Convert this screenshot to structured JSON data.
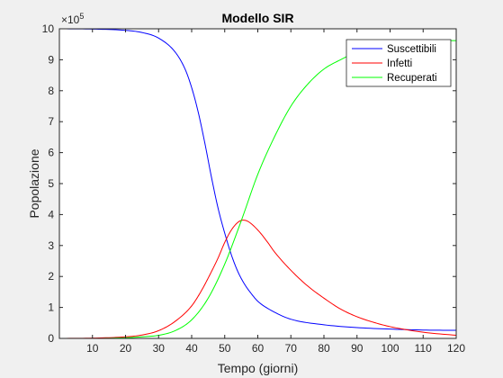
{
  "chart_data": {
    "type": "line",
    "title": "Modello SIR",
    "xlabel": "Tempo (giorni)",
    "ylabel": "Popolazione",
    "xlim": [
      0,
      120
    ],
    "ylim": [
      0,
      10
    ],
    "y_multiplier": "×10^5",
    "y_multiplier_base": "×10",
    "y_multiplier_exp": "5",
    "xticks": [
      10,
      20,
      30,
      40,
      50,
      60,
      70,
      80,
      90,
      100,
      110,
      120
    ],
    "yticks": [
      0,
      1,
      2,
      3,
      4,
      5,
      6,
      7,
      8,
      9,
      10
    ],
    "grid": false,
    "legend_position": "top-right",
    "series": [
      {
        "name": "Suscettibili",
        "color": "#0000ff",
        "points": [
          [
            0,
            10
          ],
          [
            10,
            9.99
          ],
          [
            20,
            9.95
          ],
          [
            25,
            9.88
          ],
          [
            30,
            9.7
          ],
          [
            35,
            9.25
          ],
          [
            38,
            8.7
          ],
          [
            40,
            8.1
          ],
          [
            42,
            7.3
          ],
          [
            44,
            6.3
          ],
          [
            46,
            5.2
          ],
          [
            48,
            4.2
          ],
          [
            50,
            3.4
          ],
          [
            52,
            2.7
          ],
          [
            54,
            2.15
          ],
          [
            56,
            1.75
          ],
          [
            58,
            1.45
          ],
          [
            60,
            1.2
          ],
          [
            65,
            0.85
          ],
          [
            70,
            0.62
          ],
          [
            80,
            0.44
          ],
          [
            90,
            0.35
          ],
          [
            100,
            0.3
          ],
          [
            110,
            0.27
          ],
          [
            120,
            0.26
          ]
        ]
      },
      {
        "name": "Infetti",
        "color": "#ff0000",
        "points": [
          [
            0,
            0
          ],
          [
            10,
            0.01
          ],
          [
            20,
            0.05
          ],
          [
            25,
            0.11
          ],
          [
            30,
            0.25
          ],
          [
            35,
            0.55
          ],
          [
            40,
            1.05
          ],
          [
            43,
            1.55
          ],
          [
            45,
            1.95
          ],
          [
            48,
            2.6
          ],
          [
            50,
            3.1
          ],
          [
            52,
            3.5
          ],
          [
            54,
            3.75
          ],
          [
            55.5,
            3.82
          ],
          [
            57,
            3.78
          ],
          [
            60,
            3.5
          ],
          [
            63,
            3.1
          ],
          [
            65,
            2.8
          ],
          [
            70,
            2.2
          ],
          [
            75,
            1.7
          ],
          [
            80,
            1.3
          ],
          [
            85,
            0.95
          ],
          [
            90,
            0.7
          ],
          [
            95,
            0.52
          ],
          [
            100,
            0.38
          ],
          [
            110,
            0.2
          ],
          [
            120,
            0.1
          ]
        ]
      },
      {
        "name": "Recuperati",
        "color": "#00ff00",
        "points": [
          [
            0,
            0
          ],
          [
            10,
            0
          ],
          [
            20,
            0.02
          ],
          [
            25,
            0.05
          ],
          [
            30,
            0.1
          ],
          [
            35,
            0.25
          ],
          [
            40,
            0.6
          ],
          [
            45,
            1.3
          ],
          [
            50,
            2.4
          ],
          [
            55,
            3.8
          ],
          [
            60,
            5.3
          ],
          [
            65,
            6.5
          ],
          [
            70,
            7.5
          ],
          [
            75,
            8.2
          ],
          [
            80,
            8.7
          ],
          [
            85,
            9.0
          ],
          [
            90,
            9.25
          ],
          [
            95,
            9.4
          ],
          [
            100,
            9.5
          ],
          [
            110,
            9.6
          ],
          [
            120,
            9.62
          ]
        ]
      }
    ]
  }
}
